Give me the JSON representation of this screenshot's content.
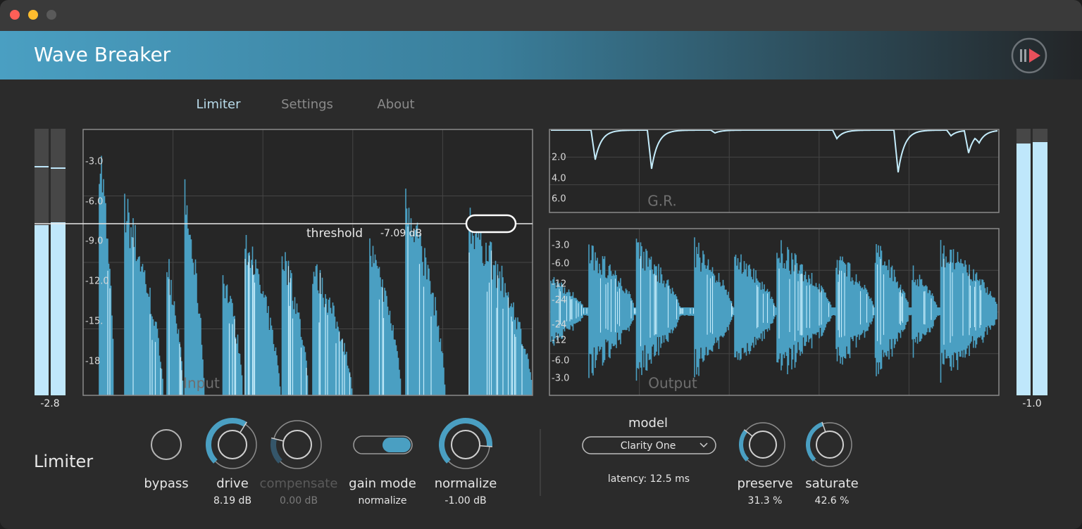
{
  "window": {
    "title": "Wave Breaker"
  },
  "tabs": [
    "Limiter",
    "Settings",
    "About"
  ],
  "meters": {
    "input_value": "-2.8",
    "output_value": "-1.0"
  },
  "input_graph": {
    "scale": [
      "-3.0",
      "-6.0",
      "-9.0",
      "-12.0",
      "-15.",
      "-18"
    ],
    "threshold_label": "threshold",
    "threshold_value": "-7.09 dB",
    "label": "Input"
  },
  "gr_graph": {
    "scale": [
      "2.0",
      "4.0",
      "6.0"
    ],
    "label": "G.R."
  },
  "output_graph": {
    "scale": [
      "-3.0",
      "-6.0",
      "-12",
      "-24",
      "-24",
      "-12",
      "-6.0",
      "-3.0"
    ],
    "label": "Output"
  },
  "section": "Limiter",
  "controls": [
    {
      "name": "bypass"
    },
    {
      "name": "drive",
      "value": "8.19 dB"
    },
    {
      "name": "compensate",
      "value": "0.00 dB"
    },
    {
      "name": "gain mode",
      "value": "normalize"
    },
    {
      "name": "normalize",
      "value": "-1.00 dB"
    }
  ],
  "model": {
    "label": "model",
    "selected": "Clarity One",
    "latency": "latency: 12.5 ms"
  },
  "right_controls": [
    {
      "name": "preserve",
      "value": "31.3 %"
    },
    {
      "name": "saturate",
      "value": "42.6 %"
    }
  ]
}
